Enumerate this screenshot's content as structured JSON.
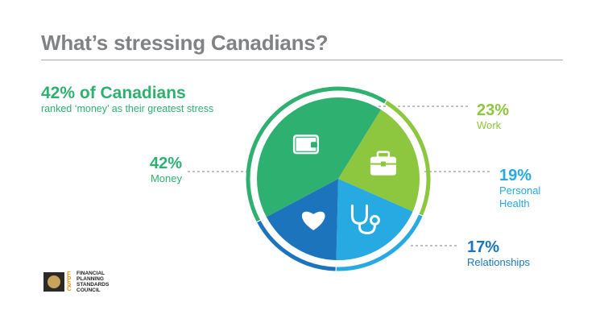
{
  "title": "What’s stressing Canadians?",
  "headline": "42% of Canadians",
  "subline": "ranked ‘money’ as their greatest stress",
  "chart_data": {
    "type": "pie",
    "slices": [
      {
        "name": "Money",
        "label": "42%",
        "value": 42,
        "color": "#2eb170",
        "icon": "wallet-icon"
      },
      {
        "name": "Work",
        "label": "23%",
        "value": 23,
        "color": "#8dc63f",
        "icon": "briefcase-icon"
      },
      {
        "name": "Personal Health",
        "label": "19%",
        "value": 19,
        "color": "#27aae1",
        "icon": "stethoscope-icon"
      },
      {
        "name": "Relationships",
        "label": "17%",
        "value": 17,
        "color": "#1c75bc",
        "icon": "heart-icon"
      }
    ]
  },
  "labels": {
    "money": {
      "pct": "42%",
      "name": "Money"
    },
    "work": {
      "pct": "23%",
      "name": "Work"
    },
    "health": {
      "pct": "19%",
      "name1": "Personal",
      "name2": "Health"
    },
    "relationships": {
      "pct": "17%",
      "name": "Relationships"
    }
  },
  "logo": {
    "line1": "FINANCIAL",
    "line2": "PLANNING",
    "line3": "STANDARDS",
    "line4": "COUNCIL"
  }
}
